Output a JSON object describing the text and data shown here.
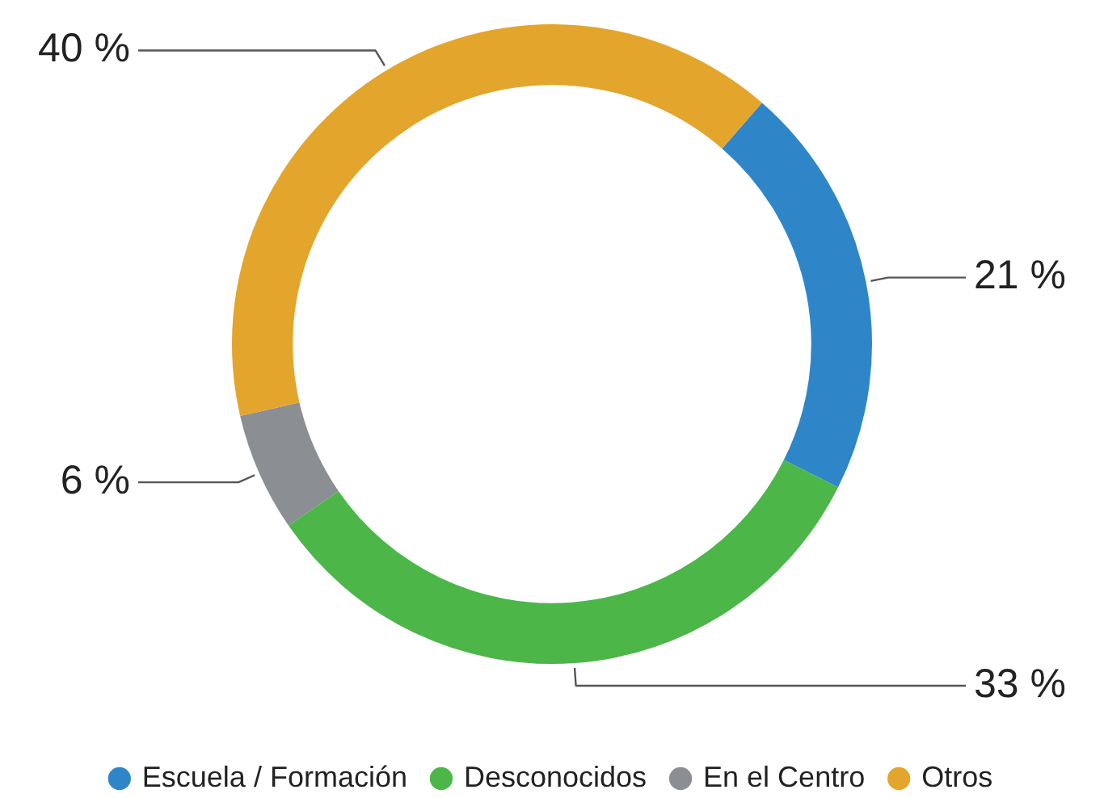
{
  "chart_data": {
    "type": "donut",
    "categories": [
      "Escuela / Formación",
      "Desconocidos",
      "En el Centro",
      "Otros"
    ],
    "values": [
      21,
      33,
      6,
      40
    ],
    "colors": [
      "#2e86c8",
      "#4cb648",
      "#8b8e92",
      "#e3a52b"
    ],
    "value_labels": [
      "21 %",
      "33 %",
      "6 %",
      "40 %"
    ],
    "legend": "bottom"
  }
}
